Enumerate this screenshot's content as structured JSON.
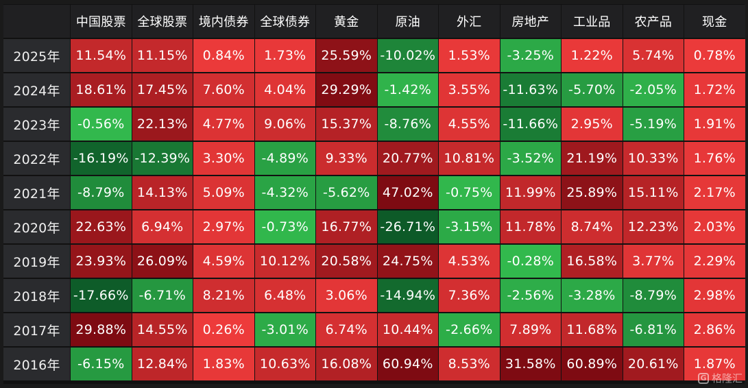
{
  "chart_data": {
    "type": "heatmap",
    "columns": [
      "中国股票",
      "全球股票",
      "境内债券",
      "全球债券",
      "黄金",
      "原油",
      "外汇",
      "房地产",
      "工业品",
      "农产品",
      "现金"
    ],
    "rows": [
      "2025年",
      "2024年",
      "2023年",
      "2022年",
      "2021年",
      "2020年",
      "2019年",
      "2018年",
      "2017年",
      "2016年"
    ],
    "values": [
      [
        "11.54%",
        "11.15%",
        "0.84%",
        "1.73%",
        "25.59%",
        "-10.02%",
        "1.53%",
        "-3.25%",
        "1.22%",
        "5.74%",
        "0.78%"
      ],
      [
        "18.61%",
        "17.45%",
        "7.60%",
        "4.04%",
        "29.29%",
        "-1.42%",
        "3.55%",
        "-11.63%",
        "-5.70%",
        "-2.05%",
        "1.72%"
      ],
      [
        "-0.56%",
        "22.13%",
        "4.77%",
        "9.06%",
        "15.37%",
        "-8.76%",
        "4.55%",
        "-11.66%",
        "2.95%",
        "-5.19%",
        "1.91%"
      ],
      [
        "-16.19%",
        "-12.39%",
        "3.30%",
        "-4.89%",
        "9.33%",
        "20.77%",
        "10.81%",
        "-3.52%",
        "21.19%",
        "10.33%",
        "1.76%"
      ],
      [
        "-8.79%",
        "14.13%",
        "5.09%",
        "-4.32%",
        "-5.62%",
        "47.02%",
        "-0.75%",
        "11.99%",
        "25.89%",
        "15.11%",
        "2.17%"
      ],
      [
        "22.63%",
        "6.94%",
        "2.97%",
        "-0.73%",
        "16.77%",
        "-26.71%",
        "-3.15%",
        "11.78%",
        "8.74%",
        "12.23%",
        "2.03%"
      ],
      [
        "23.93%",
        "26.09%",
        "4.59%",
        "10.12%",
        "20.58%",
        "24.75%",
        "4.53%",
        "-0.28%",
        "16.58%",
        "3.77%",
        "2.29%"
      ],
      [
        "-17.66%",
        "-6.71%",
        "8.21%",
        "6.48%",
        "3.06%",
        "-14.94%",
        "7.36%",
        "-2.56%",
        "-3.28%",
        "-8.79%",
        "2.98%"
      ],
      [
        "29.88%",
        "14.55%",
        "0.26%",
        "-3.01%",
        "6.74%",
        "10.44%",
        "-2.66%",
        "7.89%",
        "11.68%",
        "-6.81%",
        "2.86%"
      ],
      [
        "-6.15%",
        "12.84%",
        "1.83%",
        "10.63%",
        "16.08%",
        "60.94%",
        "8.53%",
        "31.58%",
        "60.89%",
        "20.61%",
        "1.87%"
      ]
    ],
    "color_scale": {
      "positive": [
        "#ee3b3b",
        "#7e0b12"
      ],
      "negative": [
        "#33bb4e",
        "#0d5a28"
      ]
    }
  },
  "watermark": {
    "logo": "G",
    "text": "格隆汇"
  }
}
